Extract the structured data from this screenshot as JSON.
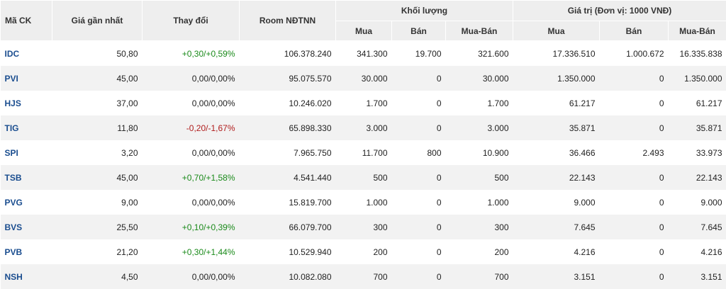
{
  "headers": {
    "symbol": "Mã CK",
    "last_price": "Giá gần nhất",
    "change": "Thay đổi",
    "room": "Room NĐTNN",
    "volume_group": "Khối lượng",
    "value_group": "Giá trị (Đơn vị: 1000 VNĐ)",
    "buy": "Mua",
    "sell": "Bán",
    "net": "Mua-Bán"
  },
  "colors": {
    "up": "#1a8a1a",
    "down": "#b01c1c",
    "symbol": "#1a4d8f"
  },
  "rows": [
    {
      "symbol": "IDC",
      "price": "50,80",
      "change": "+0,30/+0,59%",
      "dir": "up",
      "room": "106.378.240",
      "vol_buy": "341.300",
      "vol_sell": "19.700",
      "vol_net": "321.600",
      "val_buy": "17.336.510",
      "val_sell": "1.000.672",
      "val_net": "16.335.838"
    },
    {
      "symbol": "PVI",
      "price": "45,00",
      "change": "0,00/0,00%",
      "dir": "flat",
      "room": "95.075.570",
      "vol_buy": "30.000",
      "vol_sell": "0",
      "vol_net": "30.000",
      "val_buy": "1.350.000",
      "val_sell": "0",
      "val_net": "1.350.000"
    },
    {
      "symbol": "HJS",
      "price": "37,00",
      "change": "0,00/0,00%",
      "dir": "flat",
      "room": "10.246.020",
      "vol_buy": "1.700",
      "vol_sell": "0",
      "vol_net": "1.700",
      "val_buy": "61.217",
      "val_sell": "0",
      "val_net": "61.217"
    },
    {
      "symbol": "TIG",
      "price": "11,80",
      "change": "-0,20/-1,67%",
      "dir": "down",
      "room": "65.898.330",
      "vol_buy": "3.000",
      "vol_sell": "0",
      "vol_net": "3.000",
      "val_buy": "35.871",
      "val_sell": "0",
      "val_net": "35.871"
    },
    {
      "symbol": "SPI",
      "price": "3,20",
      "change": "0,00/0,00%",
      "dir": "flat",
      "room": "7.965.750",
      "vol_buy": "11.700",
      "vol_sell": "800",
      "vol_net": "10.900",
      "val_buy": "36.466",
      "val_sell": "2.493",
      "val_net": "33.973"
    },
    {
      "symbol": "TSB",
      "price": "45,00",
      "change": "+0,70/+1,58%",
      "dir": "up",
      "room": "4.541.440",
      "vol_buy": "500",
      "vol_sell": "0",
      "vol_net": "500",
      "val_buy": "22.143",
      "val_sell": "0",
      "val_net": "22.143"
    },
    {
      "symbol": "PVG",
      "price": "9,00",
      "change": "0,00/0,00%",
      "dir": "flat",
      "room": "15.819.700",
      "vol_buy": "1.000",
      "vol_sell": "0",
      "vol_net": "1.000",
      "val_buy": "9.000",
      "val_sell": "0",
      "val_net": "9.000"
    },
    {
      "symbol": "BVS",
      "price": "25,50",
      "change": "+0,10/+0,39%",
      "dir": "up",
      "room": "66.079.700",
      "vol_buy": "300",
      "vol_sell": "0",
      "vol_net": "300",
      "val_buy": "7.645",
      "val_sell": "0",
      "val_net": "7.645"
    },
    {
      "symbol": "PVB",
      "price": "21,20",
      "change": "+0,30/+1,44%",
      "dir": "up",
      "room": "10.529.940",
      "vol_buy": "200",
      "vol_sell": "0",
      "vol_net": "200",
      "val_buy": "4.216",
      "val_sell": "0",
      "val_net": "4.216"
    },
    {
      "symbol": "NSH",
      "price": "4,50",
      "change": "0,00/0,00%",
      "dir": "flat",
      "room": "10.082.080",
      "vol_buy": "700",
      "vol_sell": "0",
      "vol_net": "700",
      "val_buy": "3.151",
      "val_sell": "0",
      "val_net": "3.151"
    }
  ]
}
